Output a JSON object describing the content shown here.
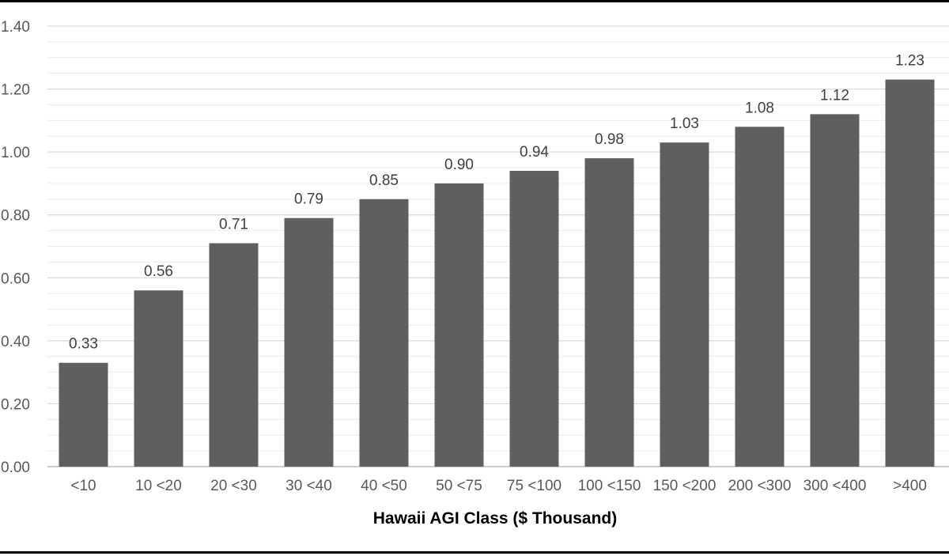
{
  "chart_data": {
    "type": "bar",
    "categories": [
      "<10",
      "10 <20",
      "20 <30",
      "30 <40",
      "40 <50",
      "50 <75",
      "75 <100",
      "100 <150",
      "150 <200",
      "200 <300",
      "300 <400",
      ">400"
    ],
    "values": [
      0.33,
      0.56,
      0.71,
      0.79,
      0.85,
      0.9,
      0.94,
      0.98,
      1.03,
      1.08,
      1.12,
      1.23
    ],
    "value_labels": [
      "0.33",
      "0.56",
      "0.71",
      "0.79",
      "0.85",
      "0.90",
      "0.94",
      "0.98",
      "1.03",
      "1.08",
      "1.12",
      "1.23"
    ],
    "xlabel": "Hawaii AGI Class ($ Thousand)",
    "ylabel": "",
    "ylim": [
      0,
      1.4
    ],
    "yticks": [
      0.0,
      0.2,
      0.4,
      0.6,
      0.8,
      1.0,
      1.2,
      1.4
    ],
    "ytick_labels": [
      "0.00",
      "0.20",
      "0.40",
      "0.60",
      "0.80",
      "1.00",
      "1.20",
      "1.40"
    ],
    "grid": true,
    "legend": "none",
    "bar_color": "#5f5f5f"
  }
}
